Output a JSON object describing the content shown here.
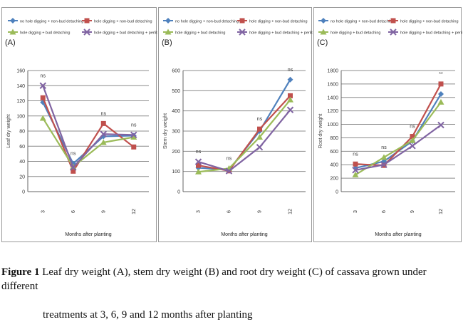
{
  "caption": {
    "label": "Figure 1",
    "text": "Leaf dry weight (A), stem dry weight (B) and root dry weight (C) of cassava grown under different",
    "text2": "treatments at 3, 6, 9 and 12 months after planting"
  },
  "chart_data": [
    {
      "type": "line",
      "panel_label": "(A)",
      "categories": [
        "3",
        "6",
        "9",
        "12"
      ],
      "xlabel": "Months after planting",
      "ylabel": "Leaf dry weight",
      "ylim": [
        0,
        160
      ],
      "yticks": [
        0,
        20,
        40,
        60,
        80,
        100,
        120,
        140,
        160
      ],
      "grid": true,
      "legend_position": "top",
      "annotations": [
        "ns",
        "ns",
        "ns",
        "ns"
      ],
      "series": [
        {
          "name": "no hole digging + non-bud detaching",
          "color": "#4f81bd",
          "marker": "diamond",
          "values": [
            118,
            37,
            73,
            74
          ]
        },
        {
          "name": "hole digging + non-bud detaching",
          "color": "#c0504d",
          "marker": "square",
          "values": [
            124,
            27,
            90,
            59
          ]
        },
        {
          "name": "hole digging + bud detaching",
          "color": "#9bbb59",
          "marker": "triangle",
          "values": [
            97,
            33,
            65,
            72
          ]
        },
        {
          "name": "hole digging + bud detaching + perlite",
          "color": "#8064a2",
          "marker": "x",
          "values": [
            140,
            32,
            76,
            75
          ]
        }
      ]
    },
    {
      "type": "line",
      "panel_label": "(B)",
      "categories": [
        "3",
        "6",
        "9",
        "12"
      ],
      "xlabel": "Months after planting",
      "ylabel": "Stem dry weight",
      "ylim": [
        0,
        600
      ],
      "yticks": [
        0,
        100,
        200,
        300,
        400,
        500,
        600
      ],
      "grid": true,
      "legend_position": "top",
      "annotations": [
        "ns",
        "ns",
        "ns",
        "ns"
      ],
      "series": [
        {
          "name": "no hole digging + non-bud detaching",
          "color": "#4f81bd",
          "marker": "diamond",
          "values": [
            118,
            108,
            300,
            555
          ]
        },
        {
          "name": "hole digging + non-bud detaching",
          "color": "#c0504d",
          "marker": "square",
          "values": [
            130,
            103,
            310,
            475
          ]
        },
        {
          "name": "hole digging + bud detaching",
          "color": "#9bbb59",
          "marker": "triangle",
          "values": [
            98,
            115,
            270,
            455
          ]
        },
        {
          "name": "hole digging + bud detaching + perlite",
          "color": "#8064a2",
          "marker": "x",
          "values": [
            148,
            102,
            220,
            405
          ]
        }
      ]
    },
    {
      "type": "line",
      "panel_label": "(C)",
      "categories": [
        "3",
        "6",
        "9",
        "12"
      ],
      "xlabel": "Months after planting",
      "ylabel": "Root dry weight",
      "ylim": [
        0,
        1800
      ],
      "yticks": [
        0,
        200,
        400,
        600,
        800,
        1000,
        1200,
        1400,
        1600,
        1800
      ],
      "grid": true,
      "legend_position": "top",
      "annotations": [
        "ns",
        "ns",
        "ns",
        "**"
      ],
      "series": [
        {
          "name": "no hole digging + non-bud detaching",
          "color": "#4f81bd",
          "marker": "diamond",
          "values": [
            350,
            450,
            750,
            1450
          ]
        },
        {
          "name": "hole digging + non-bud detaching",
          "color": "#c0504d",
          "marker": "square",
          "values": [
            410,
            390,
            820,
            1600
          ]
        },
        {
          "name": "hole digging + bud detaching",
          "color": "#9bbb59",
          "marker": "triangle",
          "values": [
            250,
            510,
            760,
            1330
          ]
        },
        {
          "name": "hole digging + bud detaching + perlite",
          "color": "#8064a2",
          "marker": "x",
          "values": [
            320,
            400,
            680,
            990
          ]
        }
      ]
    }
  ]
}
